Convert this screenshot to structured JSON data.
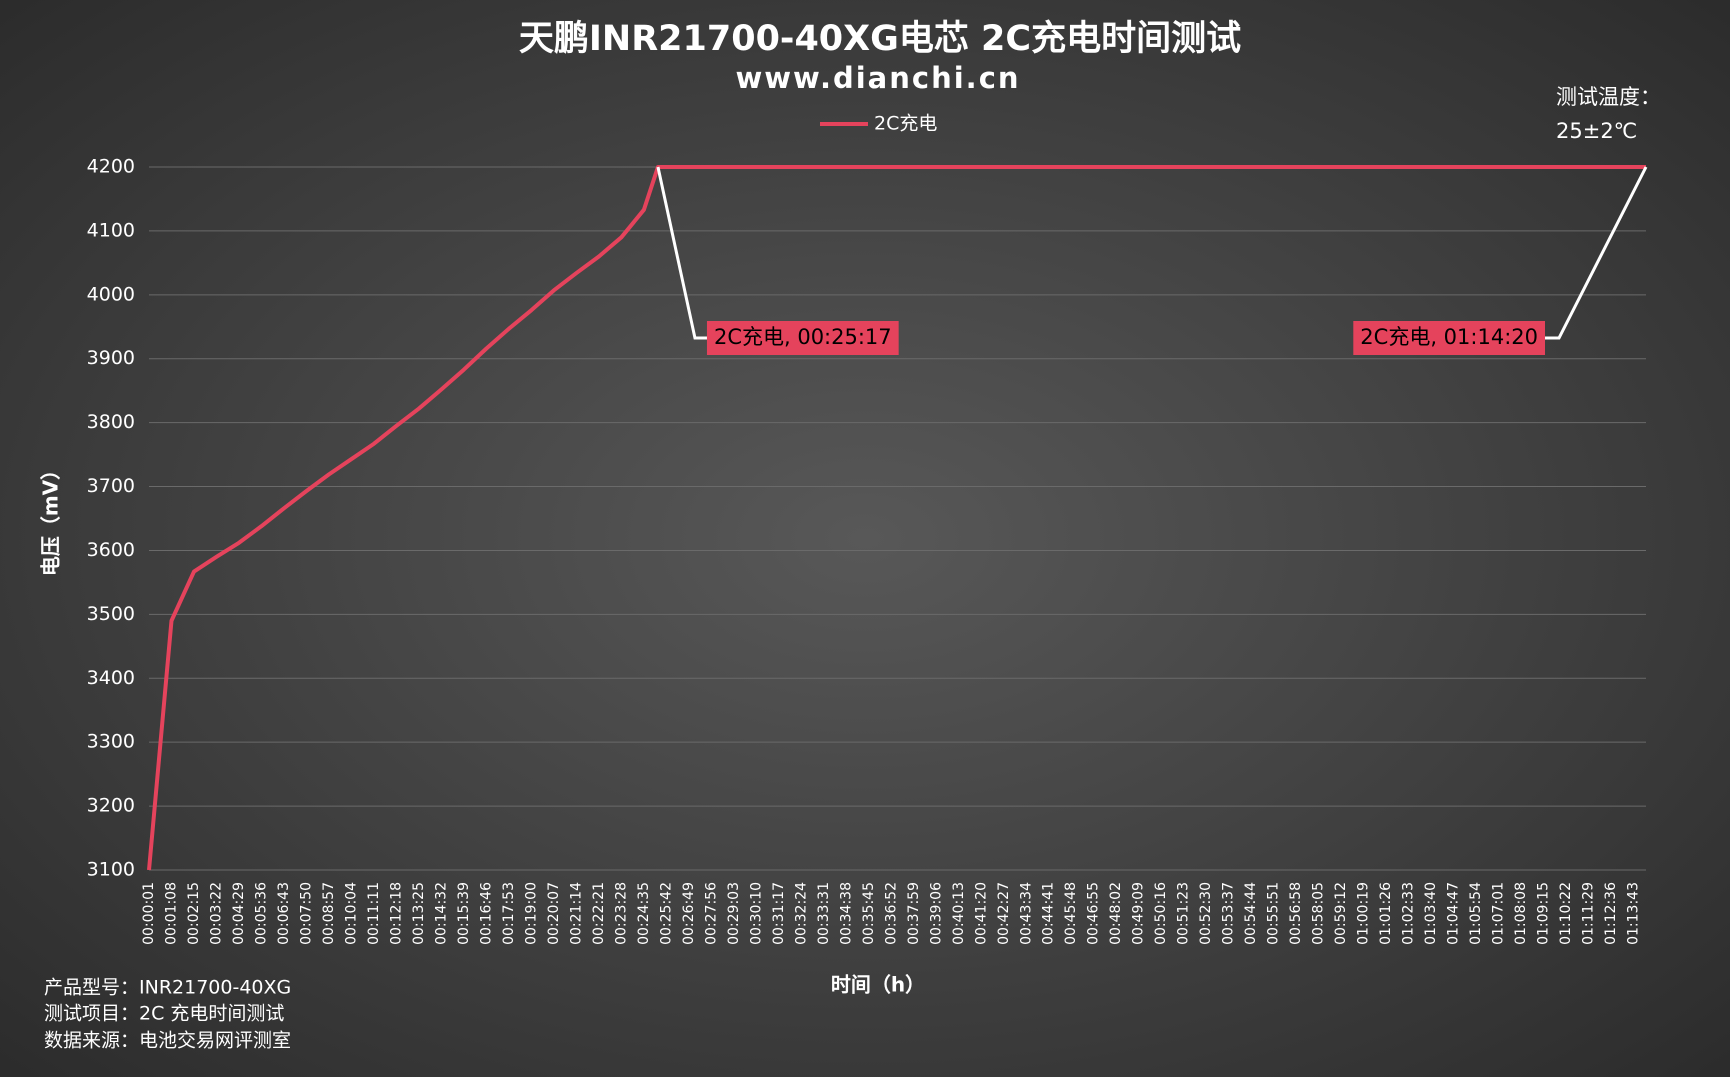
{
  "chart_data": {
    "type": "line",
    "title": "天鹏INR21700-40XG电芯 2C充电时间测试",
    "subtitle": "www.dianchi.cn",
    "x_label": "时间（h）",
    "y_label": "电压（mV）",
    "x": [
      "00:00:01",
      "00:01:08",
      "00:02:15",
      "00:03:22",
      "00:04:29",
      "00:05:36",
      "00:06:43",
      "00:07:50",
      "00:08:57",
      "00:10:04",
      "00:11:11",
      "00:12:18",
      "00:13:25",
      "00:14:32",
      "00:15:39",
      "00:16:46",
      "00:17:53",
      "00:19:00",
      "00:20:07",
      "00:21:14",
      "00:22:21",
      "00:23:28",
      "00:24:35",
      "00:25:17",
      "00:25:42",
      "00:26:49",
      "00:27:56",
      "00:29:03",
      "00:30:10",
      "00:31:17",
      "00:32:24",
      "00:33:31",
      "00:34:38",
      "00:35:45",
      "00:36:52",
      "00:37:59",
      "00:39:06",
      "00:40:13",
      "00:41:20",
      "00:42:27",
      "00:43:34",
      "00:44:41",
      "00:45:48",
      "00:46:55",
      "00:48:02",
      "00:49:09",
      "00:50:16",
      "00:51:23",
      "00:52:30",
      "00:53:37",
      "00:54:44",
      "00:55:51",
      "00:56:58",
      "00:58:05",
      "00:59:12",
      "01:00:19",
      "01:01:26",
      "01:02:33",
      "01:03:40",
      "01:04:47",
      "01:05:54",
      "01:07:01",
      "01:08:08",
      "01:09:15",
      "01:10:22",
      "01:11:29",
      "01:12:36",
      "01:13:43",
      "01:14:20"
    ],
    "series": [
      {
        "name": "2C充电",
        "color": "#e5435c",
        "values": [
          3100,
          3490,
          3567,
          3590,
          3612,
          3638,
          3666,
          3693,
          3719,
          3743,
          3767,
          3795,
          3822,
          3852,
          3883,
          3916,
          3947,
          3976,
          4007,
          4034,
          4060,
          4090,
          4133,
          4200,
          4200,
          4200,
          4200,
          4200,
          4200,
          4200,
          4200,
          4200,
          4200,
          4200,
          4200,
          4200,
          4200,
          4200,
          4200,
          4200,
          4200,
          4200,
          4200,
          4200,
          4200,
          4200,
          4200,
          4200,
          4200,
          4200,
          4200,
          4200,
          4200,
          4200,
          4200,
          4200,
          4200,
          4200,
          4200,
          4200,
          4200,
          4200,
          4200,
          4200,
          4200,
          4200,
          4200,
          4200,
          4200
        ]
      }
    ],
    "xlim": [
      "00:00:01",
      "01:14:20"
    ],
    "xticks": [
      "00:00:01",
      "00:01:08",
      "00:02:15",
      "00:03:22",
      "00:04:29",
      "00:05:36",
      "00:06:43",
      "00:07:50",
      "00:08:57",
      "00:10:04",
      "00:11:11",
      "00:12:18",
      "00:13:25",
      "00:14:32",
      "00:15:39",
      "00:16:46",
      "00:17:53",
      "00:19:00",
      "00:20:07",
      "00:21:14",
      "00:22:21",
      "00:23:28",
      "00:24:35",
      "00:25:42",
      "00:26:49",
      "00:27:56",
      "00:29:03",
      "00:30:10",
      "00:31:17",
      "00:32:24",
      "00:33:31",
      "00:34:38",
      "00:35:45",
      "00:36:52",
      "00:37:59",
      "00:39:06",
      "00:40:13",
      "00:41:20",
      "00:42:27",
      "00:43:34",
      "00:44:41",
      "00:45:48",
      "00:46:55",
      "00:48:02",
      "00:49:09",
      "00:50:16",
      "00:51:23",
      "00:52:30",
      "00:53:37",
      "00:54:44",
      "00:55:51",
      "00:56:58",
      "00:58:05",
      "00:59:12",
      "01:00:19",
      "01:01:26",
      "01:02:33",
      "01:03:40",
      "01:04:47",
      "01:05:54",
      "01:07:01",
      "01:08:08",
      "01:09:15",
      "01:10:22",
      "01:11:29",
      "01:12:36",
      "01:13:43"
    ],
    "ylim": [
      3100,
      4200
    ],
    "yticks": [
      3100,
      3200,
      3300,
      3400,
      3500,
      3600,
      3700,
      3800,
      3900,
      4000,
      4100,
      4200
    ],
    "grid": true,
    "legend": "top",
    "annotations": [
      {
        "text": "2C充电, 00:25:17",
        "x": "00:25:17",
        "y": 4200
      },
      {
        "text": "2C充电, 01:14:20",
        "x": "01:14:20",
        "y": 4200
      }
    ],
    "notes": [
      "测试温度：",
      "25±2℃"
    ],
    "footer": [
      "产品型号：INR21700-40XG",
      "测试项目：2C 充电时间测试",
      "数据来源：电池交易网评测室"
    ]
  }
}
